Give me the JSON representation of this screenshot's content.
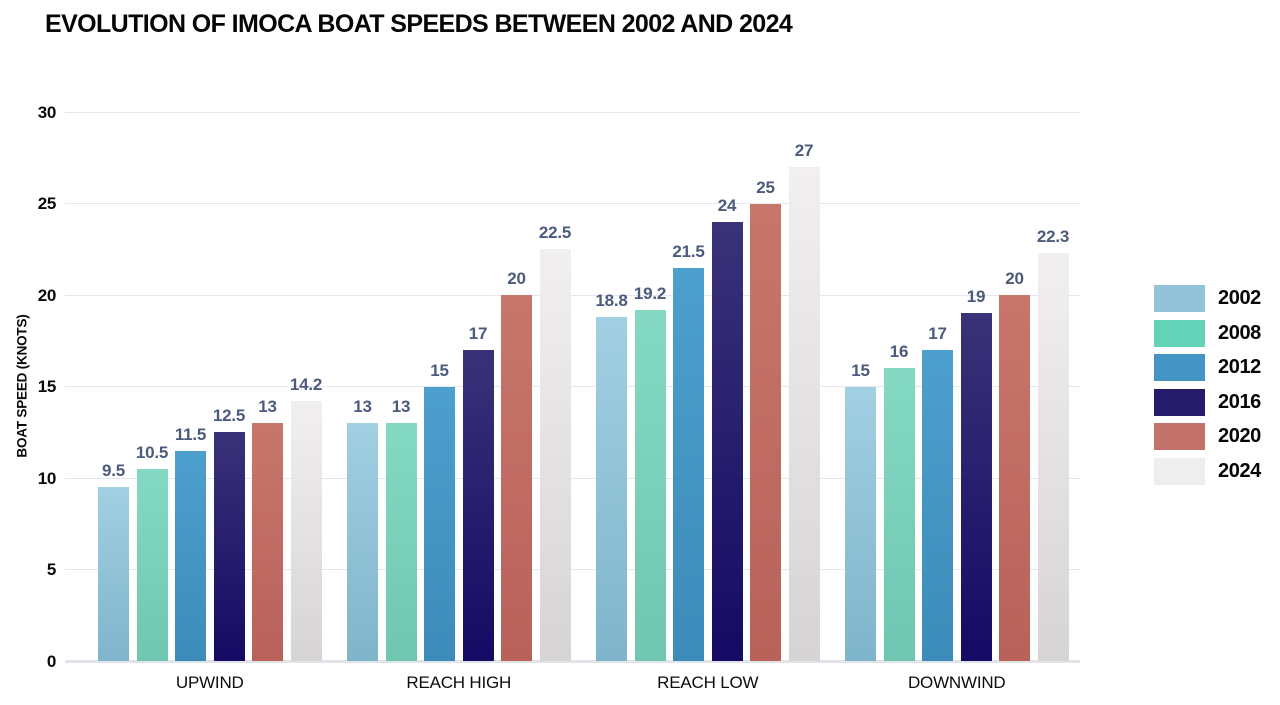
{
  "chart_data": {
    "type": "bar",
    "title": "EVOLUTION OF IMOCA BOAT SPEEDS BETWEEN 2002 AND 2024",
    "xlabel": "",
    "ylabel": "BOAT SPEED (KNOTS)",
    "ylim": [
      0,
      30
    ],
    "yticks": [
      0,
      5,
      10,
      15,
      20,
      25,
      30
    ],
    "grid": true,
    "legend_position": "right",
    "value_labels": true,
    "categories": [
      "UPWIND",
      "REACH HIGH",
      "REACH LOW",
      "DOWNWIND"
    ],
    "series": [
      {
        "name": "2002",
        "values": [
          9.5,
          13,
          18.8,
          15
        ],
        "color_top": "#a2cfe2",
        "color_bottom": "#7fb5cb",
        "legend_color": "#93c3d9"
      },
      {
        "name": "2008",
        "values": [
          10.5,
          13,
          19.2,
          16
        ],
        "color_top": "#84d9c2",
        "color_bottom": "#6fc7b1",
        "legend_color": "#63d3b8"
      },
      {
        "name": "2012",
        "values": [
          11.5,
          15,
          21.5,
          17
        ],
        "color_top": "#4d9fcd",
        "color_bottom": "#3d8bba",
        "legend_color": "#4495c5"
      },
      {
        "name": "2016",
        "values": [
          12.5,
          17,
          24,
          19
        ],
        "color_top": "#3a3278",
        "color_bottom": "#150a64",
        "legend_color": "#251b6b"
      },
      {
        "name": "2020",
        "values": [
          13,
          20,
          25,
          20
        ],
        "color_top": "#c8766c",
        "color_bottom": "#b8625a",
        "legend_color": "#c4716a"
      },
      {
        "name": "2024",
        "values": [
          14.2,
          22.5,
          27,
          22.3
        ],
        "color_top": "#f1efef",
        "color_bottom": "#d6d4d4",
        "legend_color": "#efeeee"
      }
    ],
    "colors": {
      "gridline": "#e6e6ef",
      "baseline": "#e2e3e9",
      "value_label": "#4c5b7c",
      "text": "#060606"
    }
  }
}
